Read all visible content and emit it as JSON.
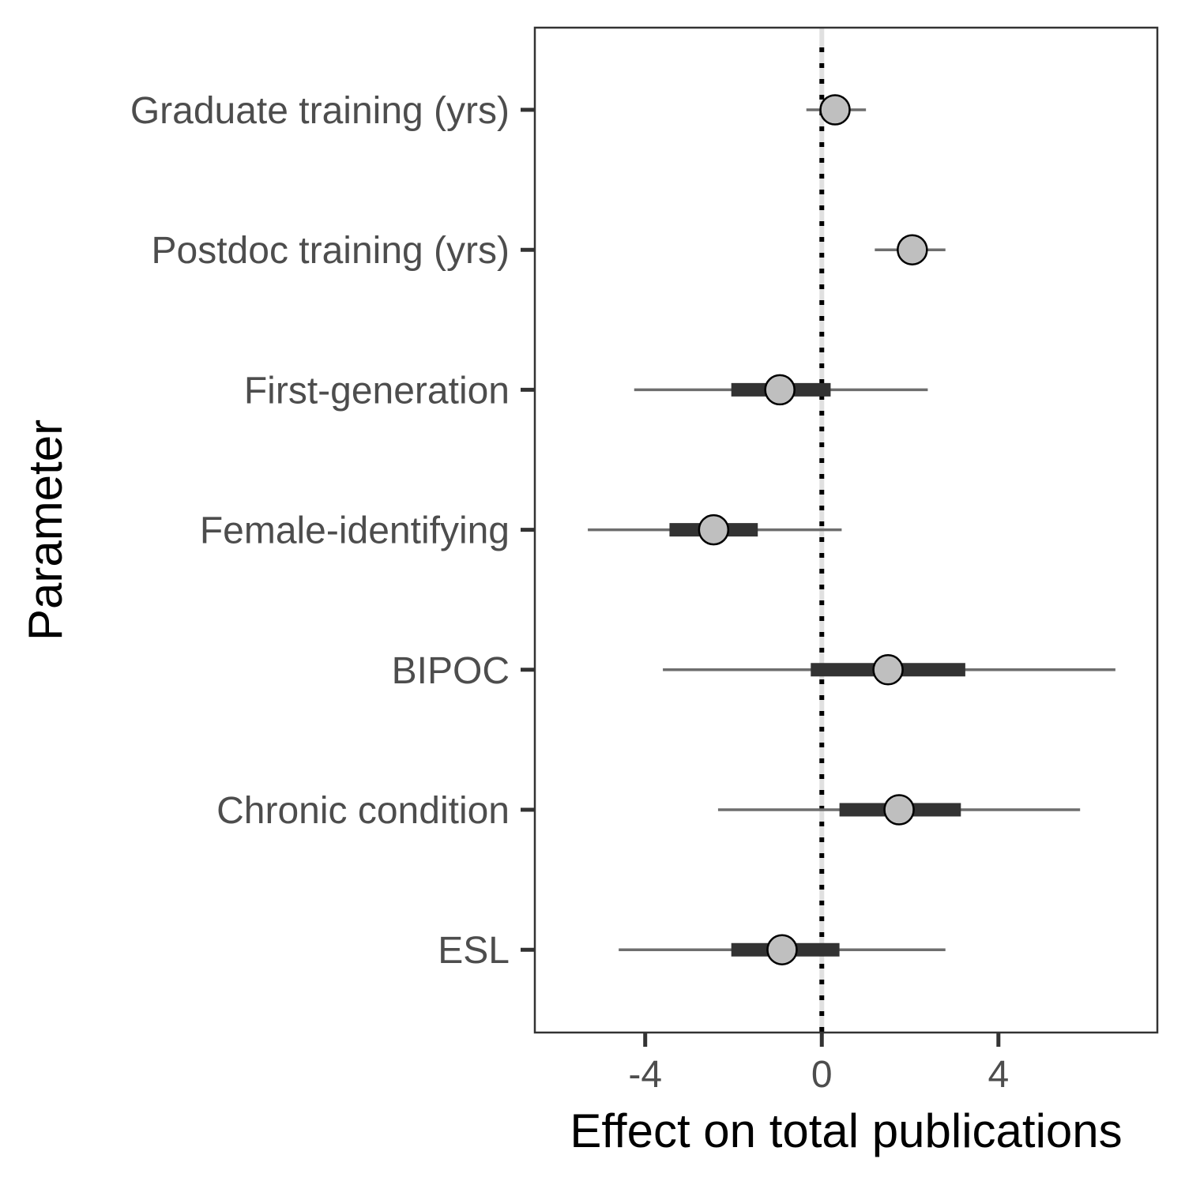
{
  "chart_data": {
    "type": "forest",
    "xlabel": "Effect on total publications",
    "ylabel": "Parameter",
    "xlim": [
      -6.5,
      7.6
    ],
    "x_ticks": [
      -4,
      0,
      4
    ],
    "x_tick_labels": [
      "-4",
      "0",
      "4"
    ],
    "reference_line_x": 0,
    "reference_line_style": "dotted",
    "grid": false,
    "legend": "none",
    "parameters": [
      {
        "label": "Graduate training (yrs)",
        "estimate": 0.3,
        "inner_low": null,
        "inner_high": null,
        "outer_low": -0.35,
        "outer_high": 1.0
      },
      {
        "label": "Postdoc training (yrs)",
        "estimate": 2.05,
        "inner_low": null,
        "inner_high": null,
        "outer_low": 1.2,
        "outer_high": 2.8
      },
      {
        "label": "First-generation",
        "estimate": -0.95,
        "inner_low": -2.05,
        "inner_high": 0.2,
        "outer_low": -4.25,
        "outer_high": 2.4
      },
      {
        "label": "Female-identifying",
        "estimate": -2.45,
        "inner_low": -3.45,
        "inner_high": -1.45,
        "outer_low": -5.3,
        "outer_high": 0.45
      },
      {
        "label": "BIPOC",
        "estimate": 1.5,
        "inner_low": -0.25,
        "inner_high": 3.25,
        "outer_low": -3.6,
        "outer_high": 6.65
      },
      {
        "label": "Chronic condition",
        "estimate": 1.75,
        "inner_low": 0.4,
        "inner_high": 3.15,
        "outer_low": -2.35,
        "outer_high": 5.85
      },
      {
        "label": "ESL",
        "estimate": -0.9,
        "inner_low": -2.05,
        "inner_high": 0.4,
        "outer_low": -4.6,
        "outer_high": 2.8
      }
    ]
  },
  "colors": {
    "outer_interval": "#6e6e6e",
    "inner_interval": "#333333",
    "point_fill": "#bfbfbf",
    "point_stroke": "#000000",
    "reference_line": "#000000",
    "reference_band": "#e0e0e0",
    "panel_border": "#333333",
    "axis_ticks": "#333333",
    "tick_label_text": "#4d4d4d"
  }
}
